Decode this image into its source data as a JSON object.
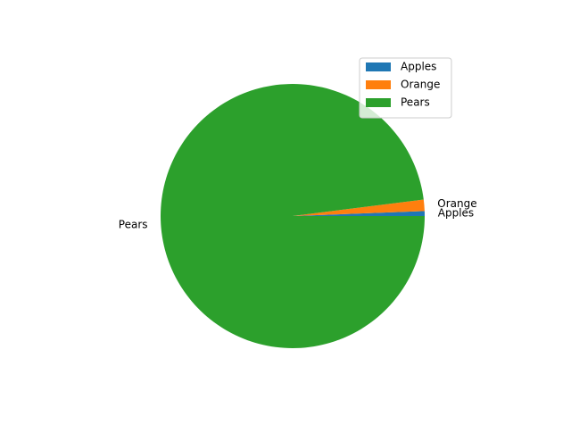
{
  "chart_data": {
    "type": "pie",
    "title": "",
    "labels": [
      "Apples",
      "Orange",
      "Pears"
    ],
    "values": [
      0.6,
      1.4,
      98.0
    ],
    "colors": [
      "#1f77b4",
      "#ff7f0e",
      "#2ca02c"
    ],
    "start_angle_deg": 0,
    "direction": "counterclockwise",
    "legend": {
      "placement": "upper right",
      "entries": [
        "Apples",
        "Orange",
        "Pears"
      ]
    }
  }
}
